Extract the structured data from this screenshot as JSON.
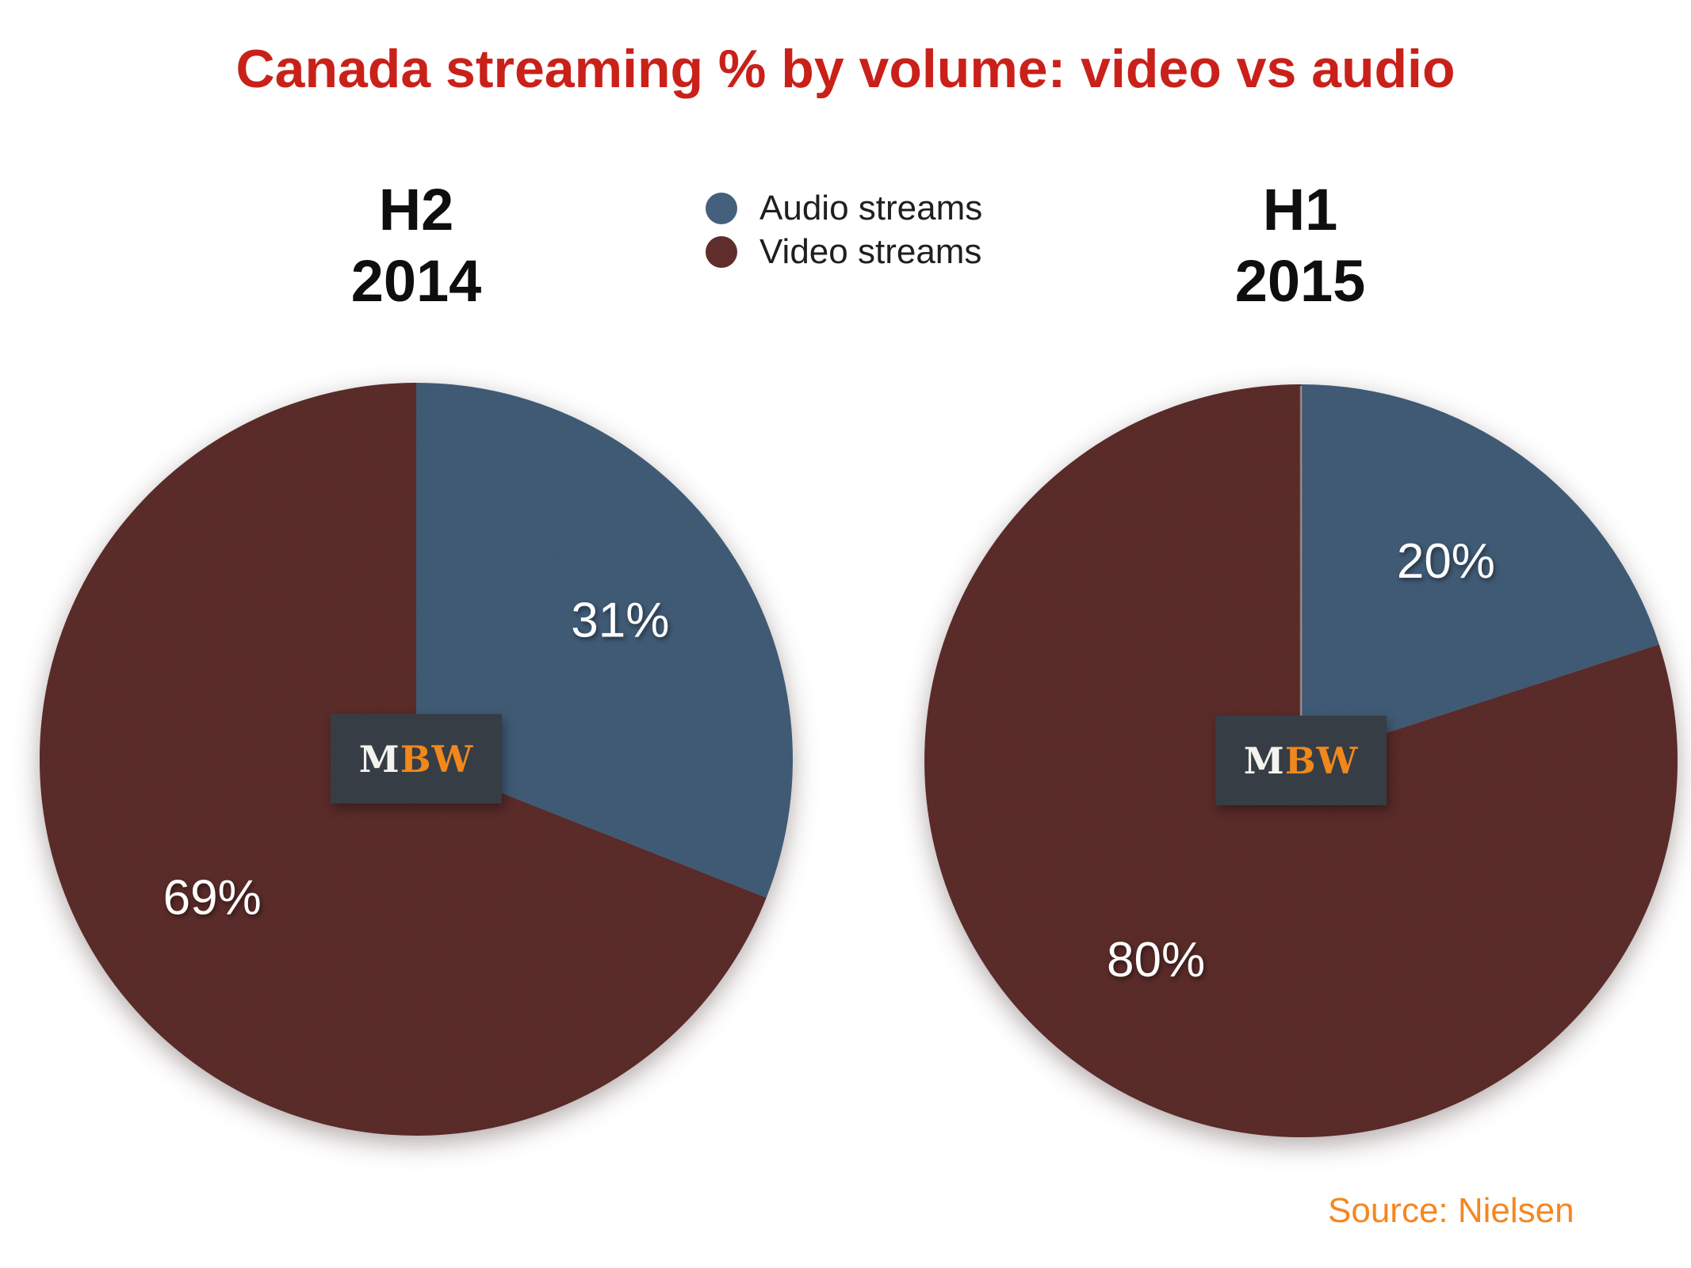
{
  "title": {
    "text": "Canada streaming % by volume: video vs audio",
    "color": "#c9211a"
  },
  "legend": {
    "items": [
      {
        "label": "Audio streams",
        "color": "#44607c"
      },
      {
        "label": "Video streams",
        "color": "#5f2e2c"
      }
    ]
  },
  "logo": {
    "m": "M",
    "bw": "BW",
    "bg": "#363d45",
    "m_color": "#f5f3ee",
    "bw_color": "#f0881c"
  },
  "source": {
    "text": "Source: Nielsen",
    "color": "#f6861f"
  },
  "chart_data": [
    {
      "type": "pie",
      "title": "H2 2014",
      "title_lines": [
        "H2",
        "2014"
      ],
      "categories": [
        "Audio streams",
        "Video streams"
      ],
      "values": [
        31,
        69
      ],
      "value_labels": [
        "31%",
        "69%"
      ],
      "colors": [
        "#44607c",
        "#5f2e2c"
      ],
      "label_color": "#ffffff",
      "start_angle_deg": 0,
      "direction": "clockwise",
      "legend_position": "top-center",
      "divider_highlight": false
    },
    {
      "type": "pie",
      "title": "H1 2015",
      "title_lines": [
        "H1",
        "2015"
      ],
      "categories": [
        "Audio streams",
        "Video streams"
      ],
      "values": [
        20,
        80
      ],
      "value_labels": [
        "20%",
        "80%"
      ],
      "colors": [
        "#44607c",
        "#5f2e2c"
      ],
      "label_color": "#ffffff",
      "start_angle_deg": 0,
      "direction": "clockwise",
      "legend_position": "top-center",
      "divider_highlight": true
    }
  ]
}
